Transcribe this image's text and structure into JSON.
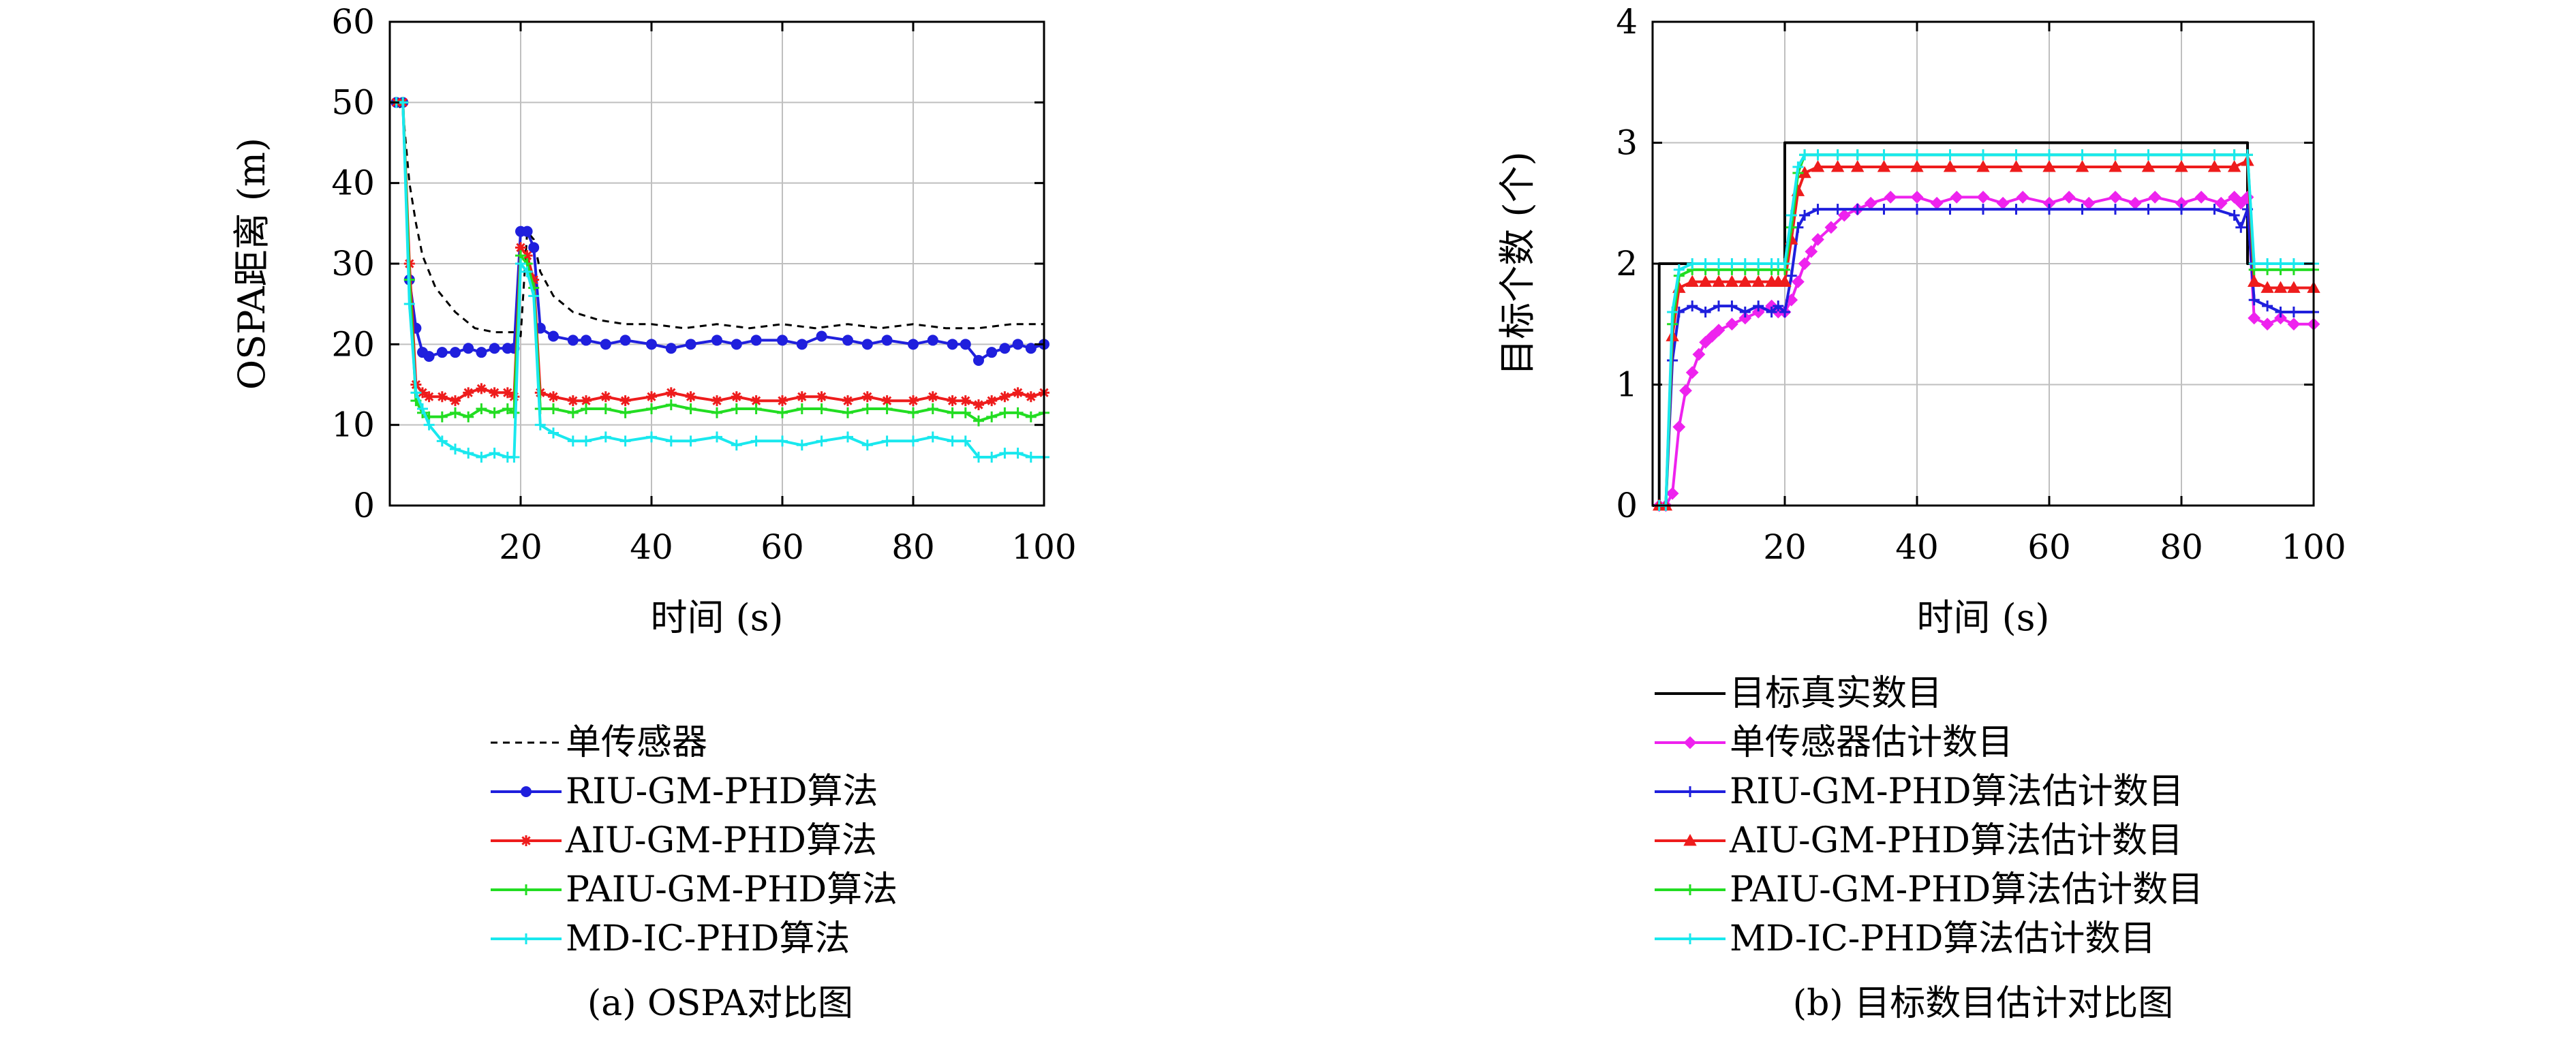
{
  "colors": {
    "single": "#000000",
    "riu": "#1f1fdd",
    "aiu": "#ee1c1c",
    "paiu": "#22dd22",
    "md": "#19e8ee",
    "truth": "#000000",
    "single_est": "#ee22ee",
    "riu_est": "#1f1fdd",
    "aiu_est": "#ee1c1c",
    "paiu_est": "#22dd22",
    "md_est": "#19e8ee",
    "grid": "#bfbfbf"
  },
  "chart_data": [
    {
      "type": "line",
      "caption": "(a) OSPA对比图",
      "xlabel": "时间 (s)",
      "ylabel": "OSPA距离 (m)",
      "xlim": [
        0,
        100
      ],
      "ylim": [
        0,
        60
      ],
      "xticks": [
        20,
        40,
        60,
        80,
        100
      ],
      "yticks": [
        0,
        10,
        20,
        30,
        40,
        50,
        60
      ],
      "grid": true,
      "legend_position": "below",
      "series": [
        {
          "name": "单传感器",
          "style": "dashed",
          "marker": "none",
          "x": [
            1,
            2,
            3,
            4,
            5,
            7,
            10,
            13,
            16,
            19,
            20,
            21,
            22,
            23,
            25,
            28,
            32,
            36,
            40,
            45,
            50,
            55,
            60,
            65,
            70,
            75,
            80,
            85,
            90,
            95,
            100
          ],
          "y": [
            50,
            49,
            40,
            35,
            31,
            27,
            24,
            22,
            21.5,
            21.5,
            21,
            34,
            33,
            29,
            26,
            24,
            23,
            22.5,
            22.5,
            22,
            22.5,
            22,
            22.5,
            22,
            22.5,
            22,
            22.5,
            22,
            22,
            22.5,
            22.5
          ]
        },
        {
          "name": "RIU-GM-PHD算法",
          "style": "solid",
          "marker": "circle",
          "x": [
            1,
            2,
            3,
            4,
            5,
            6,
            8,
            10,
            12,
            14,
            16,
            18,
            19,
            20,
            21,
            22,
            23,
            25,
            28,
            30,
            33,
            36,
            40,
            43,
            46,
            50,
            53,
            56,
            60,
            63,
            66,
            70,
            73,
            76,
            80,
            83,
            86,
            88,
            90,
            92,
            94,
            96,
            98,
            100
          ],
          "y": [
            50,
            50,
            28,
            22,
            19,
            18.5,
            19,
            19,
            19.5,
            19,
            19.5,
            19.5,
            19.5,
            34,
            34,
            32,
            22,
            21,
            20.5,
            20.5,
            20,
            20.5,
            20,
            19.5,
            20,
            20.5,
            20,
            20.5,
            20.5,
            20,
            21,
            20.5,
            20,
            20.5,
            20,
            20.5,
            20,
            20,
            18,
            19,
            19.5,
            20,
            19.5,
            20
          ]
        },
        {
          "name": "AIU-GM-PHD算法",
          "style": "solid",
          "marker": "star",
          "x": [
            1,
            2,
            3,
            4,
            5,
            6,
            8,
            10,
            12,
            14,
            16,
            18,
            19,
            20,
            21,
            22,
            23,
            25,
            28,
            30,
            33,
            36,
            40,
            43,
            46,
            50,
            53,
            56,
            60,
            63,
            66,
            70,
            73,
            76,
            80,
            83,
            86,
            88,
            90,
            92,
            94,
            96,
            98,
            100
          ],
          "y": [
            50,
            50,
            30,
            15,
            14,
            13.5,
            13.5,
            13,
            14,
            14.5,
            14,
            14,
            13.5,
            32,
            31,
            28,
            14,
            13.5,
            13,
            13,
            13.5,
            13,
            13.5,
            14,
            13.5,
            13,
            13.5,
            13,
            13,
            13.5,
            13.5,
            13,
            13.5,
            13,
            13,
            13.5,
            13,
            13,
            12.5,
            13,
            13.5,
            14,
            13.5,
            14
          ]
        },
        {
          "name": "PAIU-GM-PHD算法",
          "style": "solid",
          "marker": "plus",
          "x": [
            1,
            2,
            3,
            4,
            5,
            6,
            8,
            10,
            12,
            14,
            16,
            18,
            19,
            20,
            21,
            22,
            23,
            25,
            28,
            30,
            33,
            36,
            40,
            43,
            46,
            50,
            53,
            56,
            60,
            63,
            66,
            70,
            73,
            76,
            80,
            83,
            86,
            88,
            90,
            92,
            94,
            96,
            98,
            100
          ],
          "y": [
            50,
            50,
            28,
            13,
            11.5,
            11,
            11,
            11.5,
            11,
            12,
            11.5,
            12,
            11.5,
            31,
            30,
            27,
            12,
            12,
            11.5,
            12,
            12,
            11.5,
            12,
            12.5,
            12,
            11.5,
            12,
            12,
            11.5,
            12,
            12,
            11.5,
            12,
            12,
            11.5,
            12,
            11.5,
            11.5,
            10.5,
            11,
            11.5,
            11.5,
            11,
            11.5
          ]
        },
        {
          "name": "MD-IC-PHD算法",
          "style": "solid",
          "marker": "plus",
          "x": [
            1,
            2,
            3,
            4,
            5,
            6,
            8,
            10,
            12,
            14,
            16,
            18,
            19,
            20,
            21,
            22,
            23,
            25,
            28,
            30,
            33,
            36,
            40,
            43,
            46,
            50,
            53,
            56,
            60,
            63,
            66,
            70,
            73,
            76,
            80,
            83,
            86,
            88,
            90,
            92,
            94,
            96,
            98,
            100
          ],
          "y": [
            50,
            50,
            25,
            14,
            12,
            10,
            8,
            7,
            6.5,
            6,
            6.5,
            6,
            6,
            30,
            29,
            26,
            10,
            9,
            8,
            8,
            8.5,
            8,
            8.5,
            8,
            8,
            8.5,
            7.5,
            8,
            8,
            7.5,
            8,
            8.5,
            7.5,
            8,
            8,
            8.5,
            8,
            8,
            6,
            6,
            6.5,
            6.5,
            6,
            6
          ]
        }
      ]
    },
    {
      "type": "line",
      "caption": "(b) 目标数目估计对比图",
      "xlabel": "时间 (s)",
      "ylabel": "目标个数 (个)",
      "xlim": [
        0,
        100
      ],
      "ylim": [
        0,
        4
      ],
      "xticks": [
        20,
        40,
        60,
        80,
        100
      ],
      "yticks": [
        0,
        1,
        2,
        3,
        4
      ],
      "grid": true,
      "legend_position": "below",
      "series": [
        {
          "name": "目标真实数目",
          "style": "solid",
          "marker": "none",
          "x": [
            0,
            1,
            1,
            20,
            20,
            90,
            90,
            100
          ],
          "y": [
            0,
            0,
            2,
            2,
            3,
            3,
            2,
            2
          ]
        },
        {
          "name": "单传感器估计数目",
          "style": "solid",
          "marker": "diamond",
          "x": [
            1,
            2,
            3,
            4,
            5,
            6,
            7,
            8,
            9,
            10,
            12,
            14,
            16,
            18,
            19,
            20,
            21,
            22,
            23,
            24,
            25,
            27,
            29,
            31,
            33,
            36,
            40,
            43,
            46,
            50,
            53,
            56,
            60,
            63,
            66,
            70,
            73,
            76,
            80,
            83,
            86,
            88,
            89,
            90,
            91,
            93,
            95,
            97,
            100
          ],
          "y": [
            0,
            0,
            0.1,
            0.65,
            0.95,
            1.1,
            1.25,
            1.35,
            1.4,
            1.45,
            1.5,
            1.55,
            1.6,
            1.65,
            1.6,
            1.6,
            1.7,
            1.85,
            2.0,
            2.1,
            2.2,
            2.3,
            2.4,
            2.45,
            2.5,
            2.55,
            2.55,
            2.5,
            2.55,
            2.55,
            2.5,
            2.55,
            2.5,
            2.55,
            2.5,
            2.55,
            2.5,
            2.55,
            2.5,
            2.55,
            2.5,
            2.55,
            2.5,
            2.55,
            1.55,
            1.5,
            1.55,
            1.5,
            1.5
          ]
        },
        {
          "name": "RIU-GM-PHD算法估计数目",
          "style": "solid",
          "marker": "plus",
          "x": [
            1,
            2,
            3,
            4,
            6,
            8,
            10,
            12,
            14,
            16,
            18,
            19,
            20,
            21,
            22,
            23,
            25,
            28,
            31,
            35,
            40,
            45,
            50,
            55,
            60,
            65,
            70,
            75,
            80,
            85,
            88,
            89,
            90,
            91,
            93,
            95,
            97,
            100
          ],
          "y": [
            0,
            0,
            1.2,
            1.6,
            1.65,
            1.6,
            1.65,
            1.65,
            1.6,
            1.65,
            1.6,
            1.65,
            1.6,
            1.9,
            2.3,
            2.4,
            2.45,
            2.45,
            2.45,
            2.45,
            2.45,
            2.45,
            2.45,
            2.45,
            2.45,
            2.45,
            2.45,
            2.45,
            2.45,
            2.45,
            2.4,
            2.3,
            2.45,
            1.7,
            1.65,
            1.6,
            1.6,
            1.6
          ]
        },
        {
          "name": "AIU-GM-PHD算法估计数目",
          "style": "solid",
          "marker": "triangle",
          "x": [
            1,
            2,
            3,
            4,
            6,
            8,
            10,
            12,
            14,
            16,
            18,
            19,
            20,
            21,
            22,
            23,
            25,
            28,
            31,
            35,
            40,
            45,
            50,
            55,
            60,
            65,
            70,
            75,
            80,
            85,
            88,
            90,
            91,
            93,
            95,
            97,
            100
          ],
          "y": [
            0,
            0,
            1.4,
            1.8,
            1.85,
            1.85,
            1.85,
            1.85,
            1.85,
            1.85,
            1.85,
            1.85,
            1.85,
            2.2,
            2.6,
            2.75,
            2.8,
            2.8,
            2.8,
            2.8,
            2.8,
            2.8,
            2.8,
            2.8,
            2.8,
            2.8,
            2.8,
            2.8,
            2.8,
            2.8,
            2.8,
            2.85,
            1.85,
            1.8,
            1.8,
            1.8,
            1.8
          ]
        },
        {
          "name": "PAIU-GM-PHD算法估计数目",
          "style": "solid",
          "marker": "plus",
          "x": [
            1,
            2,
            3,
            4,
            6,
            8,
            10,
            12,
            14,
            16,
            18,
            19,
            20,
            21,
            22,
            23,
            25,
            28,
            31,
            35,
            40,
            45,
            50,
            55,
            60,
            65,
            70,
            75,
            80,
            85,
            88,
            90,
            91,
            93,
            95,
            97,
            100
          ],
          "y": [
            0,
            0,
            1.5,
            1.9,
            1.95,
            1.95,
            1.95,
            1.95,
            1.95,
            1.95,
            1.95,
            1.95,
            1.95,
            2.3,
            2.75,
            2.9,
            2.9,
            2.9,
            2.9,
            2.9,
            2.9,
            2.9,
            2.9,
            2.9,
            2.9,
            2.9,
            2.9,
            2.9,
            2.9,
            2.9,
            2.9,
            2.9,
            1.95,
            1.95,
            1.95,
            1.95,
            1.95
          ]
        },
        {
          "name": "MD-IC-PHD算法估计数目",
          "style": "solid",
          "marker": "plus",
          "x": [
            1,
            2,
            3,
            4,
            6,
            8,
            10,
            12,
            14,
            16,
            18,
            19,
            20,
            21,
            22,
            23,
            25,
            28,
            31,
            35,
            40,
            45,
            50,
            55,
            60,
            65,
            70,
            75,
            80,
            85,
            88,
            90,
            91,
            93,
            95,
            97,
            100
          ],
          "y": [
            0,
            0,
            1.6,
            1.95,
            2.0,
            2.0,
            2.0,
            2.0,
            2.0,
            2.0,
            2.0,
            2.0,
            2.0,
            2.4,
            2.8,
            2.9,
            2.9,
            2.9,
            2.9,
            2.9,
            2.9,
            2.9,
            2.9,
            2.9,
            2.9,
            2.9,
            2.9,
            2.9,
            2.9,
            2.9,
            2.9,
            2.9,
            2.0,
            2.0,
            2.0,
            2.0,
            2.0
          ]
        }
      ]
    }
  ]
}
